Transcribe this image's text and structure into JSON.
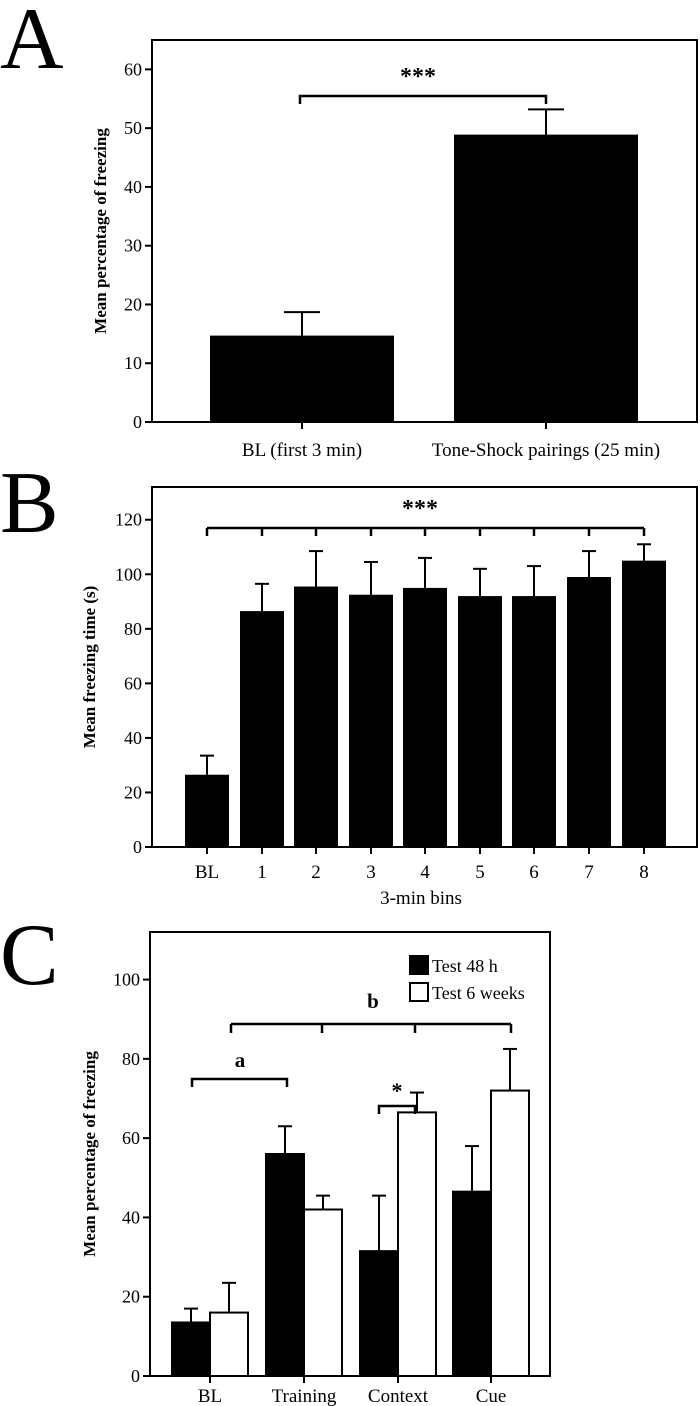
{
  "chart_data": [
    {
      "panel": "A",
      "type": "bar",
      "categories": [
        "BL (first 3 min)",
        "Tone-Shock pairings (25 min)"
      ],
      "values": [
        14.7,
        48.9
      ],
      "errors": [
        4.0,
        4.3
      ],
      "ylabel": "Mean percentage of freezing",
      "xlabel": "",
      "ylim": [
        0,
        65
      ],
      "yticks": [
        0,
        10,
        20,
        30,
        40,
        50,
        60
      ],
      "grid": false,
      "significance": [
        {
          "from": 0,
          "to": 1,
          "label": "***"
        }
      ]
    },
    {
      "panel": "B",
      "type": "bar",
      "categories": [
        "BL",
        "1",
        "2",
        "3",
        "4",
        "5",
        "6",
        "7",
        "8"
      ],
      "values": [
        26.5,
        86.5,
        95.5,
        92.5,
        95,
        92,
        92,
        99,
        105
      ],
      "errors": [
        7.0,
        10.0,
        13.0,
        12.0,
        11.0,
        10.0,
        11.0,
        9.5,
        6.0
      ],
      "xlabel": "3-min bins",
      "ylabel": "Mean freezing time (s)",
      "ylim": [
        0,
        132
      ],
      "yticks": [
        0,
        20,
        40,
        60,
        80,
        100,
        120
      ],
      "grid": false,
      "significance": [
        {
          "from": 0,
          "to": 8,
          "label": "***"
        }
      ]
    },
    {
      "panel": "C",
      "type": "bar",
      "categories": [
        "BL",
        "Training",
        "Context",
        "Cue"
      ],
      "series": [
        {
          "name": "Test 48 h",
          "values": [
            13.5,
            56,
            31.5,
            46.5
          ],
          "errors": [
            3.5,
            7.0,
            14.0,
            11.5
          ],
          "color": "#000000"
        },
        {
          "name": "Test 6 weeks",
          "values": [
            16,
            42,
            66.5,
            72
          ],
          "errors": [
            7.5,
            3.5,
            5.0,
            10.5
          ],
          "color": "#ffffff"
        }
      ],
      "ylabel": "Mean percentage of freezing",
      "xlabel": "",
      "ylim": [
        0,
        112
      ],
      "yticks": [
        0,
        20,
        40,
        60,
        80,
        100
      ],
      "grid": false,
      "legend": "top-right",
      "significance": [
        {
          "label": "a"
        },
        {
          "label": "b"
        },
        {
          "label": "*"
        }
      ]
    }
  ],
  "panels": {
    "A": {
      "letter": "A"
    },
    "B": {
      "letter": "B"
    },
    "C": {
      "letter": "C"
    }
  }
}
